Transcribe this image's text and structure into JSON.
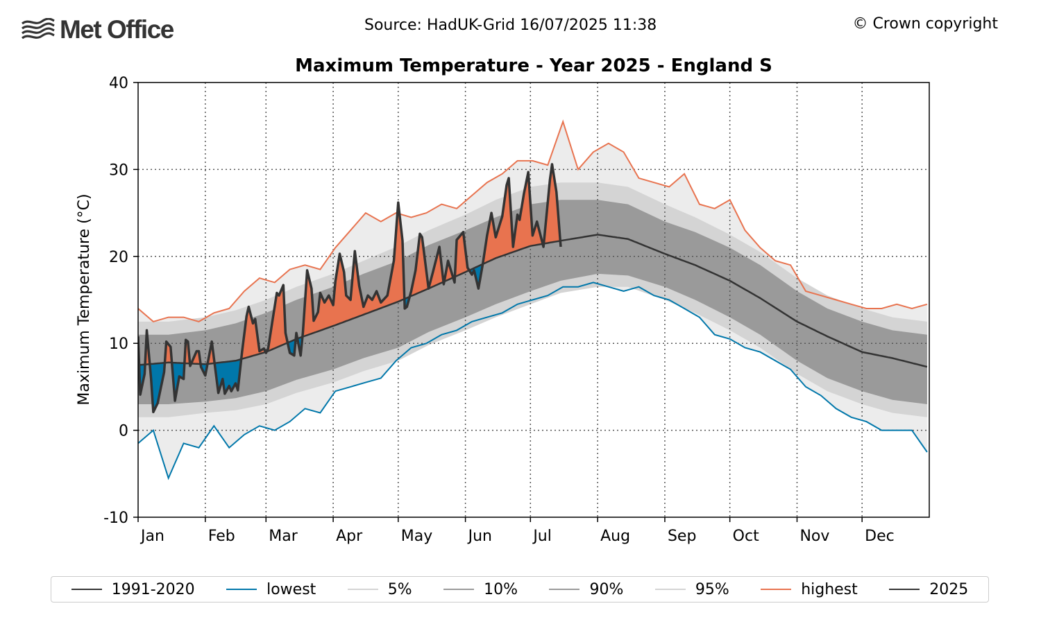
{
  "header": {
    "logo_text": "Met Office",
    "source": "Source: HadUK-Grid 16/07/2025 11:38",
    "copyright": "© Crown copyright"
  },
  "colors": {
    "mean": "#333333",
    "lowest": "#0077aa",
    "highest": "#e8734f",
    "p5_p95": "#d4d4d4",
    "p10_p90": "#9a9a9a",
    "extreme_band": "#ececec",
    "above": "#e8734f",
    "below": "#0077aa",
    "y2025": "#333333"
  },
  "chart_data": {
    "type": "line",
    "title": "Maximum Temperature - Year 2025 - England S",
    "xlabel": "",
    "ylabel": "Maximum Temperature (°C)",
    "ylim": [
      -10,
      40
    ],
    "yticks": [
      "40",
      "30",
      "20",
      "10",
      "0",
      "-10"
    ],
    "xticks": [
      "Jan",
      "Feb",
      "Mar",
      "Apr",
      "May",
      "Jun",
      "Jul",
      "Aug",
      "Sep",
      "Oct",
      "Nov",
      "Dec"
    ],
    "grid": true,
    "legend_position": "bottom",
    "legend": [
      "1991-2020",
      "lowest",
      "5%",
      "10%",
      "90%",
      "95%",
      "highest",
      "2025"
    ],
    "climatology_x": [
      "01-01",
      "01-15",
      "02-01",
      "02-15",
      "03-01",
      "03-15",
      "04-01",
      "04-15",
      "05-01",
      "05-15",
      "06-01",
      "06-15",
      "07-01",
      "07-15",
      "08-01",
      "08-15",
      "09-01",
      "09-15",
      "10-01",
      "10-15",
      "11-01",
      "11-15",
      "12-01",
      "12-15",
      "12-31"
    ],
    "series": [
      {
        "name": "1991-2020",
        "values": [
          7.5,
          7.8,
          7.6,
          8.0,
          9.0,
          10.5,
          12.0,
          13.3,
          14.8,
          16.3,
          18.2,
          19.8,
          21.2,
          21.8,
          22.5,
          22.0,
          20.3,
          19.0,
          17.2,
          15.2,
          12.5,
          10.8,
          9.0,
          8.3,
          7.3
        ]
      },
      {
        "name": "5%",
        "values": [
          1.5,
          1.5,
          2.0,
          2.3,
          3.0,
          4.3,
          5.5,
          6.8,
          8.0,
          9.8,
          11.5,
          13.0,
          14.5,
          15.8,
          16.5,
          16.5,
          15.0,
          13.5,
          11.5,
          9.5,
          6.5,
          4.5,
          3.0,
          2.0,
          1.5
        ]
      },
      {
        "name": "10%",
        "values": [
          3.0,
          3.0,
          3.3,
          3.7,
          4.5,
          5.8,
          7.0,
          8.3,
          9.5,
          11.3,
          13.0,
          14.5,
          16.0,
          17.2,
          18.0,
          17.8,
          16.5,
          15.0,
          13.0,
          11.0,
          8.0,
          6.0,
          4.5,
          3.5,
          3.0
        ]
      },
      {
        "name": "90%",
        "values": [
          11.0,
          11.0,
          11.5,
          12.3,
          13.5,
          15.0,
          16.5,
          18.0,
          19.5,
          21.3,
          23.0,
          24.5,
          26.0,
          26.5,
          26.5,
          26.0,
          24.0,
          22.8,
          21.0,
          19.0,
          16.0,
          14.0,
          12.5,
          11.5,
          11.0
        ]
      },
      {
        "name": "95%",
        "values": [
          12.5,
          12.5,
          13.0,
          13.8,
          15.0,
          16.5,
          18.0,
          19.5,
          21.2,
          23.0,
          24.8,
          26.5,
          28.0,
          28.5,
          28.5,
          28.0,
          26.0,
          24.5,
          22.5,
          20.5,
          17.5,
          15.5,
          14.0,
          13.0,
          12.5
        ]
      }
    ],
    "extremes_x": [
      "01-01",
      "01-08",
      "01-15",
      "01-22",
      "01-29",
      "02-05",
      "02-12",
      "02-19",
      "02-26",
      "03-05",
      "03-12",
      "03-19",
      "03-26",
      "04-02",
      "04-09",
      "04-16",
      "04-23",
      "04-30",
      "05-07",
      "05-14",
      "05-21",
      "05-28",
      "06-04",
      "06-11",
      "06-18",
      "06-25",
      "07-02",
      "07-09",
      "07-16",
      "07-23",
      "07-30",
      "08-06",
      "08-13",
      "08-20",
      "08-27",
      "09-03",
      "09-10",
      "09-17",
      "09-24",
      "10-01",
      "10-08",
      "10-15",
      "10-22",
      "10-29",
      "11-05",
      "11-12",
      "11-19",
      "11-26",
      "12-03",
      "12-10",
      "12-17",
      "12-24",
      "12-31"
    ],
    "lowest": [
      -1.5,
      0,
      -5.5,
      -1.5,
      -2,
      0.5,
      -2,
      -0.5,
      0.5,
      0,
      1,
      2.5,
      2,
      4.5,
      5,
      5.5,
      6,
      8,
      9.5,
      10,
      11,
      11.5,
      12.5,
      13,
      13.5,
      14.5,
      15,
      15.5,
      16.5,
      16.5,
      17,
      16.5,
      16,
      16.5,
      15.5,
      15,
      14,
      13,
      11,
      10.5,
      9.5,
      9,
      8,
      7,
      5,
      4,
      2.5,
      1.5,
      1,
      0,
      0,
      0,
      -2.5
    ],
    "highest": [
      14,
      12.5,
      13,
      13,
      12.5,
      13.5,
      14,
      16,
      17.5,
      17,
      18.5,
      19,
      18.5,
      21,
      23,
      25,
      24,
      25,
      24.5,
      25,
      26,
      25.5,
      27,
      28.5,
      29.5,
      31,
      31,
      30.5,
      35.5,
      30,
      32,
      33,
      32,
      29,
      28.5,
      28,
      29.5,
      26,
      25.5,
      26.5,
      23,
      21,
      19.5,
      19,
      16,
      15.5,
      15,
      14.5,
      14,
      14,
      14.5,
      14,
      14.5
    ],
    "y2025": {
      "name": "2025",
      "x": [
        "01-01",
        "01-02",
        "01-04",
        "01-05",
        "01-07",
        "01-08",
        "01-10",
        "01-13",
        "01-14",
        "01-16",
        "01-18",
        "01-20",
        "01-22",
        "01-23",
        "01-24",
        "01-25",
        "01-28",
        "01-29",
        "01-30",
        "02-01",
        "02-04",
        "02-07",
        "02-09",
        "02-10",
        "02-12",
        "02-13",
        "02-15",
        "02-16",
        "02-18",
        "02-20",
        "02-21",
        "02-23",
        "02-24",
        "02-26",
        "02-28",
        "03-01",
        "03-02",
        "03-04",
        "03-06",
        "03-07",
        "03-09",
        "03-10",
        "03-12",
        "03-14",
        "03-15",
        "03-17",
        "03-18",
        "03-20",
        "03-22",
        "03-23",
        "03-25",
        "03-26",
        "03-28",
        "03-30",
        "04-01",
        "04-02",
        "04-04",
        "04-06",
        "04-07",
        "04-09",
        "04-11",
        "04-13",
        "04-15",
        "04-17",
        "04-19",
        "04-21",
        "04-23",
        "04-26",
        "04-29",
        "05-01",
        "05-03",
        "05-04",
        "05-05",
        "05-07",
        "05-09",
        "05-11",
        "05-12",
        "05-15",
        "05-17",
        "05-20",
        "05-22",
        "05-24",
        "05-27",
        "05-28",
        "05-31",
        "06-02",
        "06-04",
        "06-05",
        "06-07",
        "06-09",
        "06-11",
        "06-13",
        "06-15",
        "06-18",
        "06-20",
        "06-21",
        "06-23",
        "06-25",
        "06-26",
        "06-28",
        "06-30",
        "07-02",
        "07-04",
        "07-07",
        "07-10",
        "07-11",
        "07-13",
        "07-15"
      ],
      "values": [
        10.8,
        4.1,
        6.5,
        11.5,
        5.9,
        2.1,
        3.1,
        6.7,
        10.2,
        9.6,
        3.4,
        6.2,
        5.9,
        10.4,
        10.2,
        7.4,
        9.1,
        9.1,
        7.3,
        6.3,
        10.2,
        4.3,
        5.9,
        4.2,
        5.1,
        4.5,
        5.4,
        4.6,
        9.1,
        13.1,
        14.2,
        12.3,
        12.8,
        9.1,
        9.4,
        8.9,
        9.4,
        12.6,
        15.8,
        15.5,
        16.7,
        11.2,
        8.9,
        8.6,
        11.2,
        8.6,
        11.2,
        18.4,
        16.3,
        12.6,
        13.6,
        15.8,
        14.7,
        15.5,
        14.4,
        17.1,
        20.3,
        18.2,
        15.5,
        15.0,
        20.6,
        16.6,
        14.2,
        15.5,
        15.0,
        16.0,
        14.7,
        15.5,
        19.5,
        26.2,
        21.8,
        14.0,
        14.2,
        16.0,
        18.4,
        22.6,
        22.2,
        16.3,
        18.2,
        21.1,
        16.8,
        19.5,
        17.0,
        21.9,
        22.8,
        18.7,
        17.9,
        18.4,
        16.3,
        19.1,
        22.4,
        25.0,
        22.2,
        24.6,
        28.2,
        29.0,
        21.1,
        24.8,
        24.2,
        27.2,
        29.7,
        22.4,
        24.0,
        21.1,
        28.8,
        30.6,
        27.4,
        21.1
      ]
    }
  }
}
